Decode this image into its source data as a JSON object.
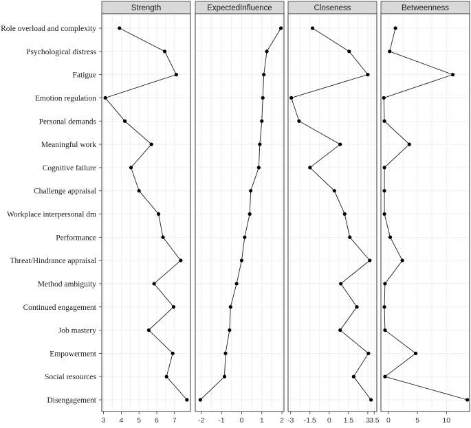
{
  "chart_data": {
    "type": "line",
    "categories": [
      "Role overload and complexity",
      "Psychological distress",
      "Fatigue",
      "Emotion regulation",
      "Personal demands",
      "Meaningful work",
      "Cognitive failure",
      "Challenge appraisal",
      "Workplace interpersonal dm",
      "Performance",
      "Threat/Hindrance appraisal",
      "Method ambiguity",
      "Continued engagement",
      "Job mastery",
      "Empowerment",
      "Social resources",
      "Disengagement"
    ],
    "panels": [
      {
        "name": "Strength",
        "xlim": [
          2.9,
          7.9
        ],
        "ticks": [
          3,
          4,
          5,
          6,
          7
        ],
        "values": [
          3.9,
          6.45,
          7.1,
          3.1,
          4.2,
          5.7,
          4.55,
          5.0,
          6.1,
          6.35,
          7.35,
          5.85,
          6.95,
          5.55,
          6.9,
          6.55,
          7.7
        ]
      },
      {
        "name": "ExpectedInfluence",
        "xlim": [
          -2.3,
          2.1
        ],
        "ticks": [
          -2,
          -1,
          0,
          1,
          2
        ],
        "values": [
          1.95,
          1.25,
          1.1,
          1.05,
          1.0,
          0.9,
          0.85,
          0.45,
          0.4,
          0.15,
          0.0,
          -0.25,
          -0.55,
          -0.6,
          -0.8,
          -0.85,
          -2.05
        ]
      },
      {
        "name": "Closeness",
        "xlim": [
          -3.2,
          3.7
        ],
        "ticks": [
          -3,
          -1.5,
          0,
          1.5,
          3,
          3.5
        ],
        "tick_labels": [
          "-3",
          "-1.5",
          "0",
          "1.5",
          "3",
          "3.5"
        ],
        "values": [
          -1.3,
          1.55,
          3.0,
          -2.95,
          -2.35,
          0.85,
          -1.5,
          0.4,
          1.2,
          1.6,
          3.15,
          0.9,
          2.15,
          0.85,
          3.05,
          1.9,
          3.25
        ]
      },
      {
        "name": "Betweenness",
        "xlim": [
          -1.3,
          14.0
        ],
        "ticks": [
          0,
          5,
          10
        ],
        "values": [
          1.2,
          0.2,
          11.1,
          -0.8,
          -0.7,
          3.6,
          -0.7,
          -0.7,
          -0.7,
          0.3,
          2.4,
          -0.6,
          -0.7,
          -0.6,
          4.7,
          -0.6,
          13.6
        ]
      }
    ]
  }
}
